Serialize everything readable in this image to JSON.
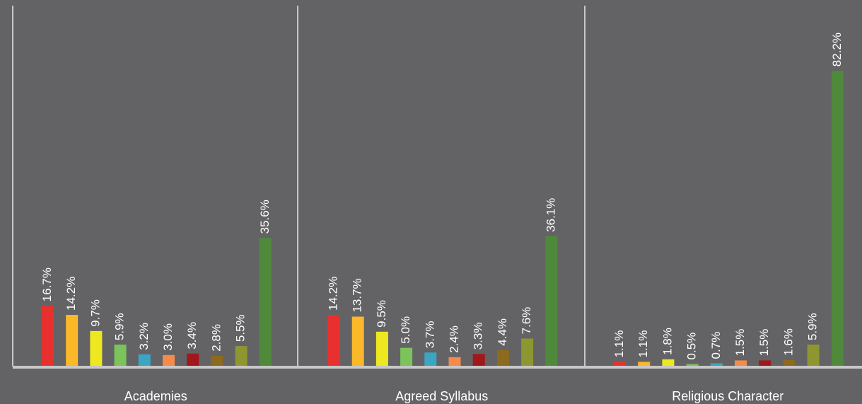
{
  "chart_data": {
    "type": "bar",
    "categories": [
      "Academies",
      "Agreed Syllabus",
      "Religious Character"
    ],
    "ylim": [
      0,
      85
    ],
    "series": [
      {
        "color": "#e8302e",
        "values": [
          16.7,
          14.2,
          1.1
        ],
        "value_labels": [
          "16.7%",
          "14.2%",
          "1.1%"
        ]
      },
      {
        "color": "#fbb829",
        "values": [
          14.2,
          13.7,
          1.1
        ],
        "value_labels": [
          "14.2%",
          "13.7%",
          "1.1%"
        ]
      },
      {
        "color": "#eee820",
        "values": [
          9.7,
          9.5,
          1.8
        ],
        "value_labels": [
          "9.7%",
          "9.5%",
          "1.8%"
        ]
      },
      {
        "color": "#7bc35a",
        "values": [
          5.9,
          5.0,
          0.5
        ],
        "value_labels": [
          "5.9%",
          "5.0%",
          "0.5%"
        ]
      },
      {
        "color": "#3aa6c4",
        "values": [
          3.2,
          3.7,
          0.7
        ],
        "value_labels": [
          "3.2%",
          "3.7%",
          "0.7%"
        ]
      },
      {
        "color": "#f58b4a",
        "values": [
          3.0,
          2.4,
          1.5
        ],
        "value_labels": [
          "3.0%",
          "2.4%",
          "1.5%"
        ]
      },
      {
        "color": "#a0181c",
        "values": [
          3.4,
          3.3,
          1.5
        ],
        "value_labels": [
          "3.4%",
          "3.3%",
          "1.5%"
        ]
      },
      {
        "color": "#8c6a1f",
        "values": [
          2.8,
          4.4,
          1.6
        ],
        "value_labels": [
          "2.8%",
          "4.4%",
          "1.6%"
        ]
      },
      {
        "color": "#8e9630",
        "values": [
          5.5,
          7.6,
          5.9
        ],
        "value_labels": [
          "5.5%",
          "7.6%",
          "5.9%"
        ]
      },
      {
        "color": "#4f8a3a",
        "values": [
          35.6,
          36.1,
          82.2
        ],
        "value_labels": [
          "35.6%",
          "36.1%",
          "82.2%"
        ]
      }
    ]
  }
}
